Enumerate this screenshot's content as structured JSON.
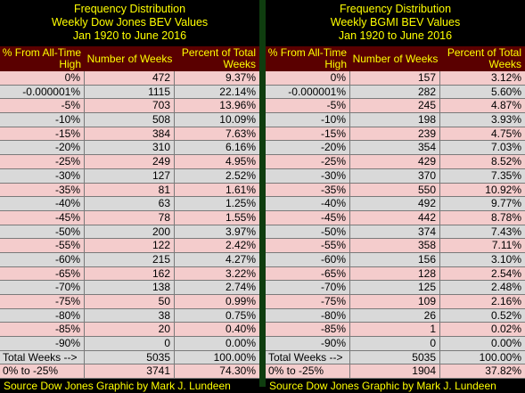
{
  "left": {
    "title_lines": [
      "Frequency Distribution",
      "Weekly Dow Jones BEV Values",
      "Jan 1920 to June 2016"
    ],
    "headers": {
      "pct": "% From All-Time High",
      "weeks": "Number of Weeks",
      "percent": "Percent of Total Weeks"
    },
    "rows": [
      {
        "pct": "0%",
        "weeks": "472",
        "percent": "9.37%"
      },
      {
        "pct": "-0.000001%",
        "weeks": "1115",
        "percent": "22.14%"
      },
      {
        "pct": "-5%",
        "weeks": "703",
        "percent": "13.96%"
      },
      {
        "pct": "-10%",
        "weeks": "508",
        "percent": "10.09%"
      },
      {
        "pct": "-15%",
        "weeks": "384",
        "percent": "7.63%"
      },
      {
        "pct": "-20%",
        "weeks": "310",
        "percent": "6.16%"
      },
      {
        "pct": "-25%",
        "weeks": "249",
        "percent": "4.95%"
      },
      {
        "pct": "-30%",
        "weeks": "127",
        "percent": "2.52%"
      },
      {
        "pct": "-35%",
        "weeks": "81",
        "percent": "1.61%"
      },
      {
        "pct": "-40%",
        "weeks": "63",
        "percent": "1.25%"
      },
      {
        "pct": "-45%",
        "weeks": "78",
        "percent": "1.55%"
      },
      {
        "pct": "-50%",
        "weeks": "200",
        "percent": "3.97%"
      },
      {
        "pct": "-55%",
        "weeks": "122",
        "percent": "2.42%"
      },
      {
        "pct": "-60%",
        "weeks": "215",
        "percent": "4.27%"
      },
      {
        "pct": "-65%",
        "weeks": "162",
        "percent": "3.22%"
      },
      {
        "pct": "-70%",
        "weeks": "138",
        "percent": "2.74%"
      },
      {
        "pct": "-75%",
        "weeks": "50",
        "percent": "0.99%"
      },
      {
        "pct": "-80%",
        "weeks": "38",
        "percent": "0.75%"
      },
      {
        "pct": "-85%",
        "weeks": "20",
        "percent": "0.40%"
      },
      {
        "pct": "-90%",
        "weeks": "0",
        "percent": "0.00%"
      }
    ],
    "total": {
      "label": "Total Weeks -->",
      "weeks": "5035",
      "percent": "100.00%"
    },
    "range": {
      "label": "0% to -25%",
      "weeks": "3741",
      "percent": "74.30%"
    },
    "source": "Source Dow Jones   Graphic by Mark J. Lundeen"
  },
  "right": {
    "title_lines": [
      "Frequency Distribution",
      "Weekly BGMI BEV Values",
      "Jan 1920 to June 2016"
    ],
    "headers": {
      "pct": "% From All-Time High",
      "weeks": "Number of Weeks",
      "percent": "Percent of Total Weeks"
    },
    "rows": [
      {
        "pct": "0%",
        "weeks": "157",
        "percent": "3.12%"
      },
      {
        "pct": "-0.000001%",
        "weeks": "282",
        "percent": "5.60%"
      },
      {
        "pct": "-5%",
        "weeks": "245",
        "percent": "4.87%"
      },
      {
        "pct": "-10%",
        "weeks": "198",
        "percent": "3.93%"
      },
      {
        "pct": "-15%",
        "weeks": "239",
        "percent": "4.75%"
      },
      {
        "pct": "-20%",
        "weeks": "354",
        "percent": "7.03%"
      },
      {
        "pct": "-25%",
        "weeks": "429",
        "percent": "8.52%"
      },
      {
        "pct": "-30%",
        "weeks": "370",
        "percent": "7.35%"
      },
      {
        "pct": "-35%",
        "weeks": "550",
        "percent": "10.92%"
      },
      {
        "pct": "-40%",
        "weeks": "492",
        "percent": "9.77%"
      },
      {
        "pct": "-45%",
        "weeks": "442",
        "percent": "8.78%"
      },
      {
        "pct": "-50%",
        "weeks": "374",
        "percent": "7.43%"
      },
      {
        "pct": "-55%",
        "weeks": "358",
        "percent": "7.11%"
      },
      {
        "pct": "-60%",
        "weeks": "156",
        "percent": "3.10%"
      },
      {
        "pct": "-65%",
        "weeks": "128",
        "percent": "2.54%"
      },
      {
        "pct": "-70%",
        "weeks": "125",
        "percent": "2.48%"
      },
      {
        "pct": "-75%",
        "weeks": "109",
        "percent": "2.16%"
      },
      {
        "pct": "-80%",
        "weeks": "26",
        "percent": "0.52%"
      },
      {
        "pct": "-85%",
        "weeks": "1",
        "percent": "0.02%"
      },
      {
        "pct": "-90%",
        "weeks": "0",
        "percent": "0.00%"
      }
    ],
    "total": {
      "label": "Total Weeks -->",
      "weeks": "5035",
      "percent": "100.00%"
    },
    "range": {
      "label": "0% to -25%",
      "weeks": "1904",
      "percent": "37.82%"
    },
    "source": "Source Dow Jones   Graphic by Mark J. Lundeen"
  },
  "colors": {
    "title": "#ffff00",
    "header_bg": "#5a0000",
    "row_pink": "#f4cccc",
    "row_gray": "#d9d9d9",
    "divider": "#0f3d0f"
  }
}
